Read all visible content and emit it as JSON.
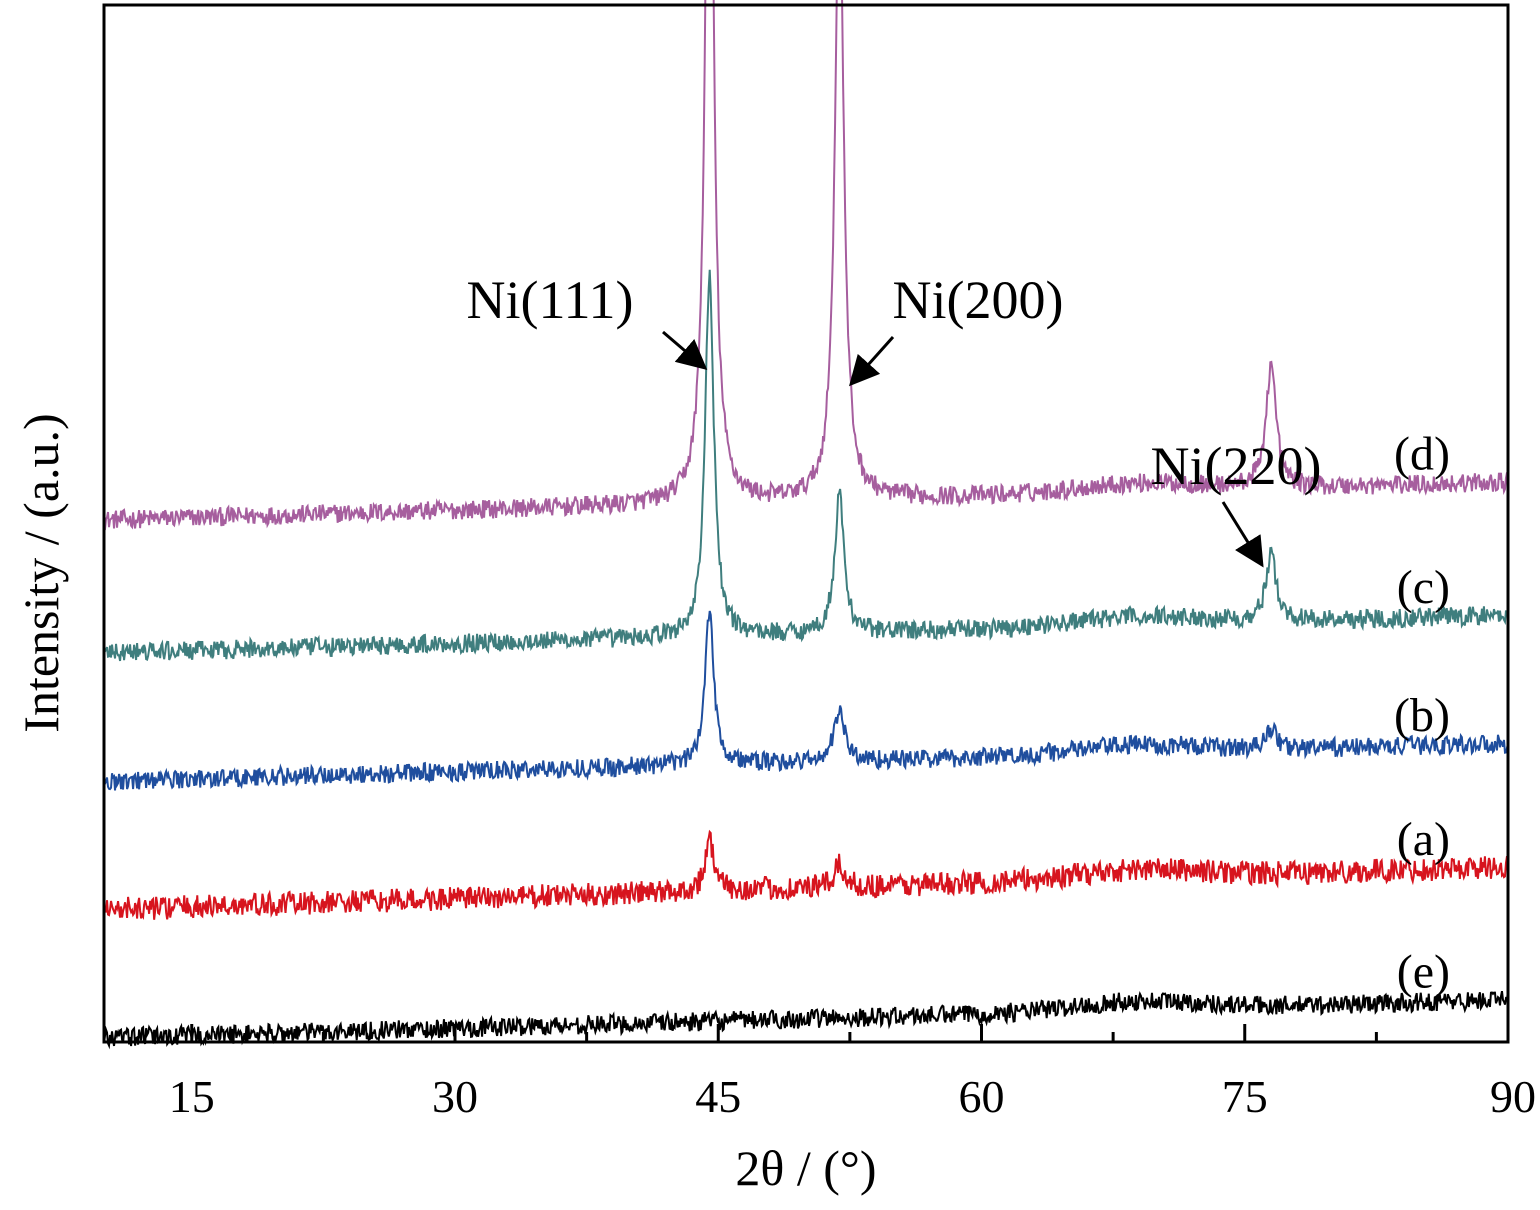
{
  "chart_data": {
    "type": "line",
    "xlabel": "2θ / (°)",
    "ylabel": "Intensity / (a.u.)",
    "xlim": [
      10,
      90
    ],
    "x_ticks": [
      15,
      30,
      45,
      60,
      75,
      90
    ],
    "x_minor_ticks": [
      22.5,
      37.5,
      52.5,
      67.5,
      82.5
    ],
    "y_ticks_shown": false,
    "grid": false,
    "legend": "inline labels at right end of each trace",
    "series": [
      {
        "label": "(d)",
        "color": "#A65E9E",
        "baseline": 800,
        "slope": 8,
        "noise": 20,
        "peaks": [
          {
            "x": 44.5,
            "h": 1800,
            "w": 0.28
          },
          {
            "x": 51.9,
            "h": 1330,
            "w": 0.3
          },
          {
            "x": 76.5,
            "h": 260,
            "w": 0.35
          }
        ]
      },
      {
        "label": "(c)",
        "color": "#3F7E7E",
        "baseline": 520,
        "slope": 8,
        "noise": 20,
        "peaks": [
          {
            "x": 44.5,
            "h": 760,
            "w": 0.3
          },
          {
            "x": 51.9,
            "h": 290,
            "w": 0.32
          },
          {
            "x": 76.5,
            "h": 140,
            "w": 0.35
          }
        ]
      },
      {
        "label": "(b)",
        "color": "#1F4E9E",
        "baseline": 250,
        "slope": 8,
        "noise": 20,
        "peaks": [
          {
            "x": 44.5,
            "h": 330,
            "w": 0.3
          },
          {
            "x": 51.9,
            "h": 110,
            "w": 0.35
          },
          {
            "x": 76.5,
            "h": 45,
            "w": 0.35
          }
        ]
      },
      {
        "label": "(a)",
        "color": "#D7141E",
        "baseline": -20,
        "slope": 9,
        "noise": 25,
        "peaks": [
          {
            "x": 44.5,
            "h": 110,
            "w": 0.3
          },
          {
            "x": 51.9,
            "h": 45,
            "w": 0.35
          }
        ]
      },
      {
        "label": "(e)",
        "color": "#000000",
        "baseline": -290,
        "slope": 8,
        "noise": 20,
        "peaks": []
      }
    ],
    "annotations": [
      {
        "text": "Ni(111)",
        "points_to_x": 44.5
      },
      {
        "text": "Ni(200)",
        "points_to_x": 51.9
      },
      {
        "text": "Ni(220)",
        "points_to_x": 76.5
      }
    ]
  }
}
